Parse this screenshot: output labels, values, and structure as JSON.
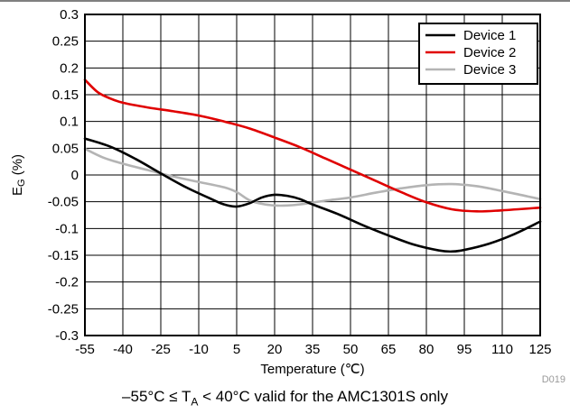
{
  "chart_data": {
    "type": "line",
    "xlabel": "Temperature (℃)",
    "ylabel": "E",
    "ylabel_sub": "G",
    "ylabel_unit": " (%)",
    "xlim": [
      -55,
      125
    ],
    "ylim": [
      -0.3,
      0.3
    ],
    "x_ticks": [
      -55,
      -40,
      -25,
      -10,
      5,
      20,
      35,
      50,
      65,
      80,
      95,
      110,
      125
    ],
    "x_tick_labels": [
      "-55",
      "-40",
      "-25",
      "-10",
      "5",
      "20",
      "35",
      "50",
      "65",
      "80",
      "95",
      "110",
      "125"
    ],
    "y_ticks": [
      0.3,
      0.25,
      0.2,
      0.15,
      0.1,
      0.05,
      0,
      -0.05,
      -0.1,
      -0.15,
      -0.2,
      -0.25,
      -0.3
    ],
    "y_tick_labels": [
      "0.3",
      "0.25",
      "0.2",
      "0.15",
      "0.1",
      "0.05",
      "0",
      "-0.05",
      "-0.1",
      "-0.15",
      "-0.2",
      "-0.25",
      "-0.3"
    ],
    "grid": true,
    "legend_position": "top-right",
    "series": [
      {
        "name": "Device 1",
        "color": "#000000",
        "x": [
          -55,
          -45,
          -35,
          -25,
          -15,
          -5,
          0,
          5,
          10,
          15,
          20,
          25,
          30,
          35,
          45,
          55,
          65,
          75,
          85,
          90,
          95,
          105,
          115,
          125
        ],
        "y": [
          0.068,
          0.053,
          0.03,
          0.003,
          -0.023,
          -0.045,
          -0.055,
          -0.059,
          -0.053,
          -0.042,
          -0.037,
          -0.039,
          -0.045,
          -0.055,
          -0.073,
          -0.094,
          -0.113,
          -0.13,
          -0.141,
          -0.143,
          -0.14,
          -0.128,
          -0.11,
          -0.087
        ]
      },
      {
        "name": "Device 2",
        "color": "#e00000",
        "x": [
          -55,
          -50,
          -45,
          -40,
          -30,
          -20,
          -10,
          0,
          10,
          20,
          30,
          40,
          50,
          60,
          70,
          80,
          90,
          100,
          110,
          125
        ],
        "y": [
          0.178,
          0.155,
          0.143,
          0.135,
          0.126,
          0.119,
          0.111,
          0.1,
          0.087,
          0.07,
          0.052,
          0.031,
          0.01,
          -0.011,
          -0.032,
          -0.051,
          -0.064,
          -0.068,
          -0.066,
          -0.061
        ]
      },
      {
        "name": "Device 3",
        "color": "#b4b4b4",
        "x": [
          -55,
          -48,
          -40,
          -30,
          -20,
          -10,
          0,
          5,
          10,
          15,
          20,
          25,
          30,
          40,
          50,
          60,
          70,
          80,
          90,
          100,
          110,
          120,
          125
        ],
        "y": [
          0.049,
          0.033,
          0.021,
          0.009,
          -0.003,
          -0.013,
          -0.023,
          -0.032,
          -0.047,
          -0.054,
          -0.057,
          -0.057,
          -0.055,
          -0.048,
          -0.042,
          -0.033,
          -0.025,
          -0.019,
          -0.017,
          -0.021,
          -0.03,
          -0.04,
          -0.045
        ]
      }
    ]
  },
  "figure_id": "D019",
  "caption": {
    "prefix": "–55°C ≤ T",
    "subscript": "A",
    "suffix": " < 40°C valid for the AMC1301S only"
  }
}
